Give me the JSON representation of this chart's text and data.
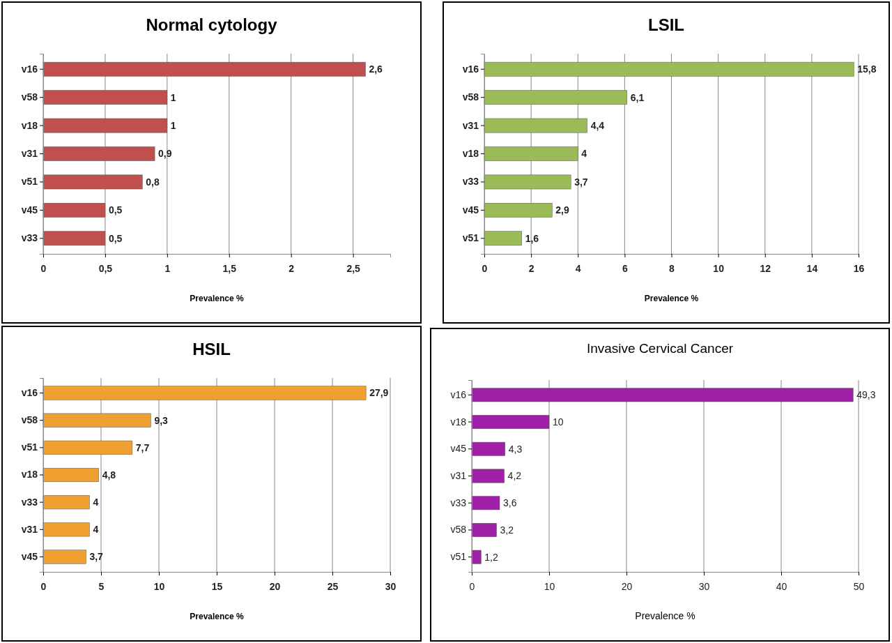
{
  "chart_data": [
    {
      "type": "bar",
      "orientation": "horizontal",
      "title": "Normal cytology",
      "xlabel": "Prevalence %",
      "categories": [
        "v16",
        "v58",
        "v18",
        "v31",
        "v51",
        "v45",
        "v33"
      ],
      "values": [
        2.6,
        1,
        1,
        0.9,
        0.8,
        0.5,
        0.5
      ],
      "value_labels": [
        "2,6",
        "1",
        "1",
        "0,9",
        "0,8",
        "0,5",
        "0,5"
      ],
      "color": "#c0504d",
      "xlim": [
        0,
        2.8
      ],
      "xticks": [
        0,
        {
          "value": 0.5,
          "label": "0,5"
        },
        1,
        {
          "value": 1.5,
          "label": "1,5"
        },
        2,
        {
          "value": 2.5,
          "label": "2,5"
        }
      ],
      "grid": "x"
    },
    {
      "type": "bar",
      "orientation": "horizontal",
      "title": "LSIL",
      "xlabel": "Prevalence %",
      "categories": [
        "v16",
        "v58",
        "v31",
        "v18",
        "v33",
        "v45",
        "v51"
      ],
      "values": [
        15.8,
        6.1,
        4.4,
        4,
        3.7,
        2.9,
        1.6
      ],
      "value_labels": [
        "15,8",
        "6,1",
        "4,4",
        "4",
        "3,7",
        "2,9",
        "1,6"
      ],
      "color": "#9bbb59",
      "xlim": [
        0,
        16
      ],
      "xticks": [
        0,
        2,
        4,
        6,
        8,
        10,
        12,
        14,
        16
      ],
      "grid": "x"
    },
    {
      "type": "bar",
      "orientation": "horizontal",
      "title": "HSIL",
      "xlabel": "Prevalence %",
      "categories": [
        "v16",
        "v58",
        "v51",
        "v18",
        "v33",
        "v31",
        "v45"
      ],
      "values": [
        27.9,
        9.3,
        7.7,
        4.8,
        4,
        4,
        3.7
      ],
      "value_labels": [
        "27,9",
        "9,3",
        "7,7",
        "4,8",
        "4",
        "4",
        "3,7"
      ],
      "color": "#f0a030",
      "xlim": [
        0,
        30
      ],
      "xticks": [
        0,
        5,
        10,
        15,
        20,
        25,
        30
      ],
      "grid": "x"
    },
    {
      "type": "bar",
      "orientation": "horizontal",
      "title": "Invasive Cervical Cancer",
      "xlabel": "Prevalence %",
      "categories": [
        "v16",
        "v18",
        "v45",
        "v31",
        "v33",
        "v58",
        "v51"
      ],
      "values": [
        49.3,
        10,
        4.3,
        4.2,
        3.6,
        3.2,
        1.2
      ],
      "value_labels": [
        "49,3",
        "10",
        "4,3",
        "4,2",
        "3,6",
        "3,2",
        "1,2"
      ],
      "color": "#a020a8",
      "xlim": [
        0,
        50
      ],
      "xticks": [
        0,
        10,
        20,
        30,
        40,
        50
      ],
      "grid": "x"
    }
  ]
}
